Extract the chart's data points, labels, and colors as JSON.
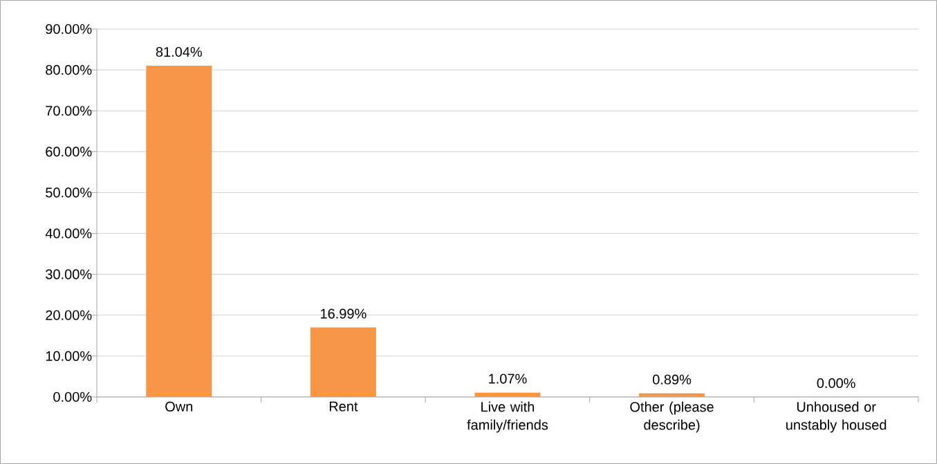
{
  "chart_data": {
    "type": "bar",
    "categories": [
      "Own",
      "Rent",
      "Live with family/friends",
      "Other (please describe)",
      "Unhoused or unstably housed"
    ],
    "values": [
      81.04,
      16.99,
      1.07,
      0.89,
      0.0
    ],
    "value_labels": [
      "81.04%",
      "16.99%",
      "1.07%",
      "0.89%",
      "0.00%"
    ],
    "color": "#f79646",
    "ylim": [
      0,
      90
    ],
    "yticks": [
      {
        "value": 0,
        "label": "0.00%"
      },
      {
        "value": 10,
        "label": "10.00%"
      },
      {
        "value": 20,
        "label": "20.00%"
      },
      {
        "value": 30,
        "label": "30.00%"
      },
      {
        "value": 40,
        "label": "40.00%"
      },
      {
        "value": 50,
        "label": "50.00%"
      },
      {
        "value": 60,
        "label": "60.00%"
      },
      {
        "value": 70,
        "label": "70.00%"
      },
      {
        "value": 80,
        "label": "80.00%"
      },
      {
        "value": 90,
        "label": "90.00%"
      }
    ],
    "grid": "y"
  }
}
